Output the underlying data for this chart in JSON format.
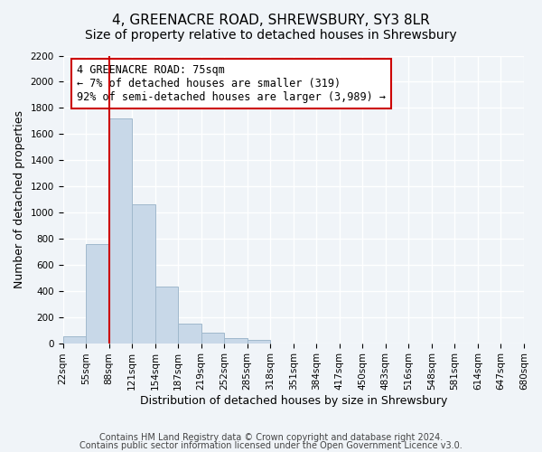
{
  "title": "4, GREENACRE ROAD, SHREWSBURY, SY3 8LR",
  "subtitle": "Size of property relative to detached houses in Shrewsbury",
  "xlabel": "Distribution of detached houses by size in Shrewsbury",
  "ylabel": "Number of detached properties",
  "footnote1": "Contains HM Land Registry data © Crown copyright and database right 2024.",
  "footnote2": "Contains public sector information licensed under the Open Government Licence v3.0.",
  "bin_labels": [
    "22sqm",
    "55sqm",
    "88sqm",
    "121sqm",
    "154sqm",
    "187sqm",
    "219sqm",
    "252sqm",
    "285sqm",
    "318sqm",
    "351sqm",
    "384sqm",
    "417sqm",
    "450sqm",
    "483sqm",
    "516sqm",
    "548sqm",
    "581sqm",
    "614sqm",
    "647sqm",
    "680sqm"
  ],
  "bar_values": [
    55,
    760,
    1720,
    1065,
    430,
    150,
    80,
    40,
    22,
    0,
    0,
    0,
    0,
    0,
    0,
    0,
    0,
    0,
    0,
    0
  ],
  "bar_color": "#c8d8e8",
  "bar_edge_color": "#a0b8cc",
  "red_line_x": 2,
  "annotation_title": "4 GREENACRE ROAD: 75sqm",
  "annotation_line1": "← 7% of detached houses are smaller (319)",
  "annotation_line2": "92% of semi-detached houses are larger (3,989) →",
  "ylim": [
    0,
    2200
  ],
  "yticks": [
    0,
    200,
    400,
    600,
    800,
    1000,
    1200,
    1400,
    1600,
    1800,
    2000,
    2200
  ],
  "bg_color": "#f0f4f8",
  "grid_color": "#ffffff",
  "annotation_box_color": "#ffffff",
  "annotation_box_edgecolor": "#cc0000",
  "red_line_color": "#cc0000",
  "title_fontsize": 11,
  "subtitle_fontsize": 10,
  "axis_label_fontsize": 9,
  "tick_fontsize": 7.5,
  "annotation_fontsize": 8.5,
  "footnote_fontsize": 7
}
